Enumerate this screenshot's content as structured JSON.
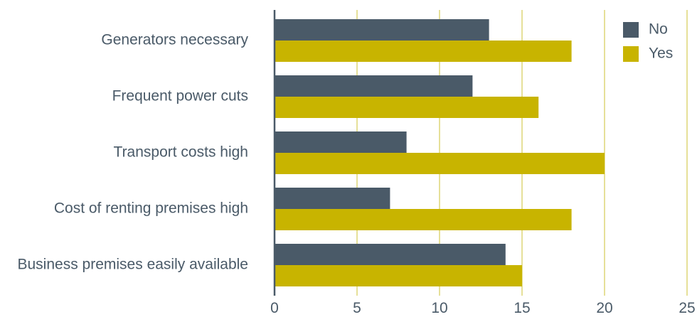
{
  "chart_data": {
    "type": "bar",
    "orientation": "horizontal",
    "categories": [
      "Generators necessary",
      "Frequent power cuts",
      "Transport costs high",
      "Cost of renting premises high",
      "Business premises easily available"
    ],
    "series": [
      {
        "name": "No",
        "values": [
          13,
          12,
          8,
          7,
          14
        ],
        "color": "#4a5a68"
      },
      {
        "name": "Yes",
        "values": [
          18,
          16,
          20,
          18,
          15
        ],
        "color": "#c8b400"
      }
    ],
    "xlim": [
      0,
      25
    ],
    "xticks": [
      0,
      5,
      10,
      15,
      20,
      25
    ],
    "xtick_labels": [
      "0",
      "5",
      "10",
      "15",
      "20",
      "25"
    ],
    "grid": "vertical",
    "grid_color": "#d6cc55",
    "axis_color": "#4a5a68",
    "legend": {
      "placement": "top-right",
      "entries": [
        "No",
        "Yes"
      ]
    }
  }
}
